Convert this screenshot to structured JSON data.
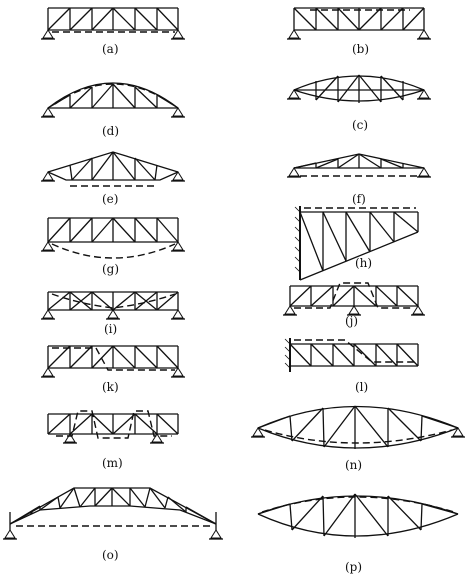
{
  "figure": {
    "panels": [
      {
        "id": "a",
        "label": "(a)"
      },
      {
        "id": "b",
        "label": "(b)"
      },
      {
        "id": "d",
        "label": "(d)"
      },
      {
        "id": "c",
        "label": "(c)"
      },
      {
        "id": "e",
        "label": "(e)"
      },
      {
        "id": "f",
        "label": "(f)"
      },
      {
        "id": "g",
        "label": "(g)"
      },
      {
        "id": "h",
        "label": "(h)"
      },
      {
        "id": "i",
        "label": "(i)"
      },
      {
        "id": "j",
        "label": "(j)"
      },
      {
        "id": "k",
        "label": "(k)"
      },
      {
        "id": "l",
        "label": "(l)"
      },
      {
        "id": "m",
        "label": "(m)"
      },
      {
        "id": "n",
        "label": "(n)"
      },
      {
        "id": "o",
        "label": "(o)"
      },
      {
        "id": "p",
        "label": "(p)"
      }
    ]
  }
}
